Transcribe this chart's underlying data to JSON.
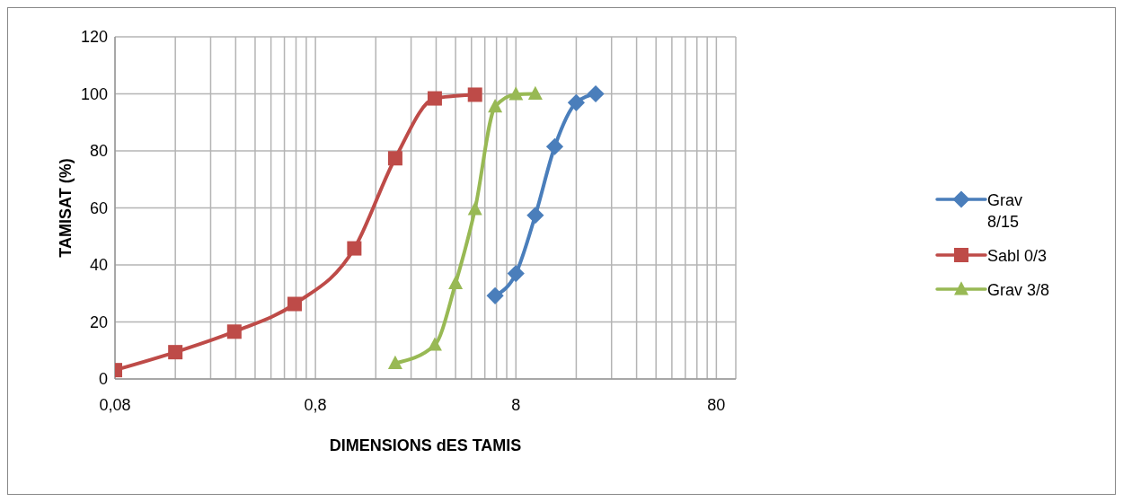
{
  "chart_data": {
    "type": "line",
    "xlabel": "DIMENSIONS dES TAMIS",
    "ylabel": "TAMISAT (%)",
    "log": "x",
    "grid": true,
    "legend": "right",
    "line_style": "solid",
    "xlim": [
      0.08,
      100
    ],
    "ylim": [
      0,
      120
    ],
    "yticks": [
      0,
      20,
      40,
      60,
      80,
      100,
      120
    ],
    "xticks": [
      {
        "value": 0.08,
        "label": "0,08"
      },
      {
        "value": 0.16,
        "label": null
      },
      {
        "value": 0.24,
        "label": null
      },
      {
        "value": 0.32,
        "label": null
      },
      {
        "value": 0.4,
        "label": null
      },
      {
        "value": 0.48,
        "label": null
      },
      {
        "value": 0.56,
        "label": null
      },
      {
        "value": 0.64,
        "label": null
      },
      {
        "value": 0.72,
        "label": null
      },
      {
        "value": 0.8,
        "label": "0,8"
      },
      {
        "value": 1.6,
        "label": null
      },
      {
        "value": 2.4,
        "label": null
      },
      {
        "value": 3.2,
        "label": null
      },
      {
        "value": 4,
        "label": null
      },
      {
        "value": 4.8,
        "label": null
      },
      {
        "value": 5.6,
        "label": null
      },
      {
        "value": 6.4,
        "label": null
      },
      {
        "value": 7.2,
        "label": null
      },
      8,
      {
        "value": 16,
        "label": null
      },
      {
        "value": 24,
        "label": null
      },
      {
        "value": 32,
        "label": null
      },
      {
        "value": 40,
        "label": null
      },
      {
        "value": 48,
        "label": null
      },
      {
        "value": 56,
        "label": null
      },
      {
        "value": 64,
        "label": null
      },
      {
        "value": 72,
        "label": null
      },
      80
    ],
    "series": [
      {
        "name": "Grav 8/15",
        "color": "#4a7ebb",
        "marker": "diamond",
        "x": [
          6.3,
          8,
          10,
          12.5,
          16,
          20
        ],
        "values": [
          29.2,
          37,
          57.4,
          81.5,
          96.9,
          100
        ]
      },
      {
        "name": "Sabl 0/3",
        "color": "#be4b48",
        "marker": "square",
        "x": [
          0.08,
          0.16,
          0.315,
          0.63,
          1.25,
          2,
          3.15,
          5
        ],
        "values": [
          3.1,
          9.4,
          16.6,
          26.3,
          45.8,
          77.4,
          98.4,
          99.7
        ]
      },
      {
        "name": "Grav 3/8",
        "color": "#98b954",
        "marker": "triangle",
        "x": [
          2,
          3.15,
          4,
          5,
          6.3,
          8,
          10
        ],
        "values": [
          5.5,
          11.9,
          33.5,
          59.5,
          95.5,
          99.8,
          100
        ]
      }
    ]
  }
}
